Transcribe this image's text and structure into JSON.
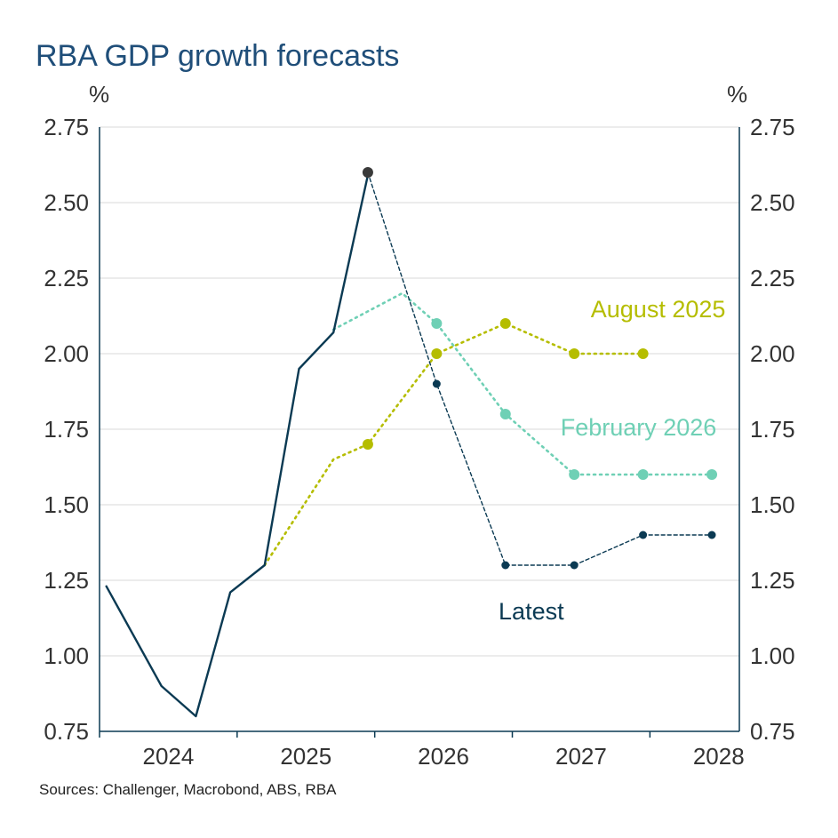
{
  "chart_data": {
    "type": "line",
    "title": "RBA GDP growth forecasts",
    "y_unit_left": "%",
    "y_unit_right": "%",
    "source": "Sources: Challenger, Macrobond, ABS, RBA",
    "ylim": [
      0.75,
      2.75
    ],
    "yticks": [
      "0.75",
      "1.00",
      "1.25",
      "1.50",
      "1.75",
      "2.00",
      "2.25",
      "2.50",
      "2.75"
    ],
    "xlim": [
      2023.55,
      2028.2
    ],
    "xtick_labels": [
      "2024",
      "2025",
      "2026",
      "2027",
      "2028"
    ],
    "xtick_label_positions": [
      2024.05,
      2025.05,
      2026.05,
      2027.05,
      2028.05
    ],
    "xtick_marks": [
      2023.55,
      2024.55,
      2025.55,
      2026.55,
      2027.55
    ],
    "grid": true,
    "series": [
      {
        "name": "Latest",
        "color": "#0b3a53",
        "style": "solid",
        "markers": false,
        "points": [
          [
            2023.6,
            1.23
          ],
          [
            2024.0,
            0.9
          ],
          [
            2024.25,
            0.8
          ],
          [
            2024.5,
            1.21
          ],
          [
            2024.75,
            1.3
          ],
          [
            2025.0,
            1.95
          ],
          [
            2025.25,
            2.07
          ],
          [
            2025.5,
            2.59
          ]
        ]
      },
      {
        "name": "Latest",
        "color": "#0b3a53",
        "style": "dashed",
        "markers": true,
        "label_value": [
          2026.45,
          1.12
        ],
        "points": [
          [
            2025.5,
            2.6
          ],
          [
            2026.0,
            1.9
          ],
          [
            2026.5,
            1.3
          ],
          [
            2027.0,
            1.3
          ],
          [
            2027.5,
            1.4
          ],
          [
            2028.0,
            1.4
          ]
        ]
      },
      {
        "name": "February 2026",
        "color": "#6fd0b5",
        "style": "dotted",
        "markers": true,
        "label_value": [
          2026.9,
          1.73
        ],
        "points": [
          [
            2025.25,
            2.08
          ],
          [
            2025.75,
            2.2
          ],
          [
            2026.0,
            2.1
          ],
          [
            2026.5,
            1.8
          ],
          [
            2027.0,
            1.6
          ],
          [
            2027.5,
            1.6
          ],
          [
            2028.0,
            1.6
          ]
        ],
        "marker_from": 2
      },
      {
        "name": "August 2025",
        "color": "#b5bd00",
        "style": "dotted",
        "markers": true,
        "label_value": [
          2027.12,
          2.12
        ],
        "points": [
          [
            2024.75,
            1.3
          ],
          [
            2025.25,
            1.65
          ],
          [
            2025.5,
            1.7
          ],
          [
            2026.0,
            2.0
          ],
          [
            2026.5,
            2.1
          ],
          [
            2027.0,
            2.0
          ],
          [
            2027.5,
            2.0
          ]
        ],
        "marker_from": 2
      }
    ],
    "colors": {
      "axis": "#0b3a53",
      "grid": "#d9d9d9",
      "title": "#1f4e79"
    }
  }
}
